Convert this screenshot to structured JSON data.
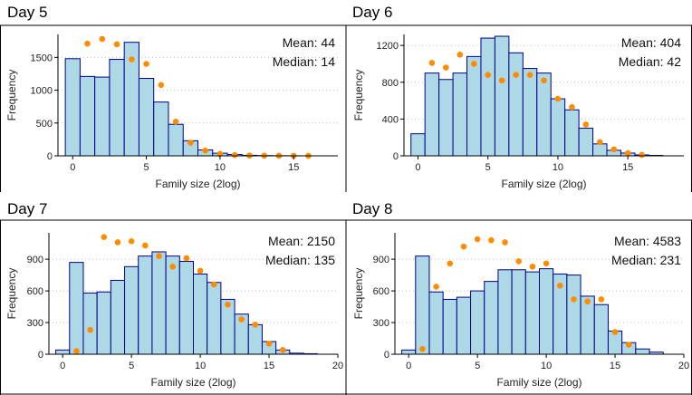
{
  "chart_data": [
    {
      "type": "bar",
      "panel_title": "Day 5",
      "xlabel": "Family size (2log)",
      "ylabel": "Frequency",
      "xlim": [
        -1,
        18
      ],
      "ylim": [
        0,
        1850
      ],
      "x_ticks": [
        0,
        5,
        10,
        15
      ],
      "y_ticks": [
        0,
        500,
        1000,
        1500
      ],
      "grid": "horizontal dotted",
      "bins": {
        "x": [
          0,
          1,
          2,
          3,
          4,
          5,
          6,
          7,
          8,
          9,
          10,
          11,
          12,
          13,
          14,
          15
        ],
        "values": [
          1480,
          1210,
          1200,
          1470,
          1730,
          1180,
          820,
          480,
          230,
          90,
          40,
          20,
          8,
          4,
          2,
          1
        ]
      },
      "points": {
        "x": [
          1,
          2,
          3,
          4,
          5,
          6,
          7,
          8,
          9,
          10,
          11,
          12,
          13,
          14,
          15,
          16
        ],
        "values": [
          1710,
          1780,
          1700,
          1470,
          1400,
          1080,
          520,
          200,
          80,
          30,
          12,
          5,
          3,
          2,
          1,
          1
        ]
      },
      "annotations": [
        "Mean: 44",
        "Median: 14"
      ],
      "bar_color": "#add8e6",
      "bar_edge": "#00008b",
      "point_color": "#ff8c00"
    },
    {
      "type": "bar",
      "panel_title": "Day 6",
      "xlabel": "Family size (2log)",
      "ylabel": "Frequency",
      "xlim": [
        -1,
        19
      ],
      "ylim": [
        0,
        1320
      ],
      "x_ticks": [
        0,
        5,
        10,
        15
      ],
      "y_ticks": [
        0,
        400,
        800,
        1200
      ],
      "grid": "horizontal dotted",
      "bins": {
        "x": [
          0,
          1,
          2,
          3,
          4,
          5,
          6,
          7,
          8,
          9,
          10,
          11,
          12,
          13,
          14,
          15,
          16,
          17
        ],
        "values": [
          240,
          900,
          830,
          900,
          1080,
          1280,
          1300,
          1120,
          950,
          900,
          620,
          500,
          300,
          130,
          60,
          30,
          10,
          5
        ]
      },
      "points": {
        "x": [
          1,
          2,
          3,
          4,
          5,
          6,
          7,
          8,
          9,
          10,
          11,
          12,
          13,
          14,
          15,
          16
        ],
        "values": [
          1010,
          960,
          1100,
          1000,
          880,
          820,
          880,
          880,
          820,
          620,
          530,
          340,
          150,
          70,
          30,
          10
        ]
      },
      "annotations": [
        "Mean: 404",
        "Median: 42"
      ],
      "bar_color": "#add8e6",
      "bar_edge": "#00008b",
      "point_color": "#ff8c00"
    },
    {
      "type": "bar",
      "panel_title": "Day 7",
      "xlabel": "Family size (2log)",
      "ylabel": "Frequency",
      "xlim": [
        -1,
        20
      ],
      "ylim": [
        0,
        1150
      ],
      "x_ticks": [
        0,
        5,
        10,
        15,
        20
      ],
      "y_ticks": [
        0,
        300,
        600,
        900
      ],
      "grid": "horizontal dotted",
      "bins": {
        "x": [
          0,
          1,
          2,
          3,
          4,
          5,
          6,
          7,
          8,
          9,
          10,
          11,
          12,
          13,
          14,
          15,
          16,
          17,
          18
        ],
        "values": [
          40,
          870,
          580,
          590,
          700,
          830,
          930,
          970,
          930,
          880,
          760,
          680,
          520,
          380,
          280,
          120,
          40,
          10,
          5
        ]
      },
      "points": {
        "x": [
          1,
          2,
          3,
          4,
          5,
          6,
          7,
          8,
          9,
          10,
          11,
          12,
          13,
          14,
          15,
          16
        ],
        "values": [
          30,
          230,
          1110,
          1060,
          1070,
          1030,
          930,
          830,
          910,
          790,
          660,
          470,
          330,
          280,
          100,
          40
        ]
      },
      "annotations": [
        "Mean: 2150",
        "Median: 135"
      ],
      "bar_color": "#add8e6",
      "bar_edge": "#00008b",
      "point_color": "#ff8c00"
    },
    {
      "type": "bar",
      "panel_title": "Day 8",
      "xlabel": "Family size (2log)",
      "ylabel": "Frequency",
      "xlim": [
        -1,
        20
      ],
      "ylim": [
        0,
        1150
      ],
      "x_ticks": [
        0,
        5,
        10,
        15,
        20
      ],
      "y_ticks": [
        0,
        300,
        600,
        900
      ],
      "grid": "horizontal dotted",
      "bins": {
        "x": [
          0,
          1,
          2,
          3,
          4,
          5,
          6,
          7,
          8,
          9,
          10,
          11,
          12,
          13,
          14,
          15,
          16,
          17,
          18
        ],
        "values": [
          40,
          930,
          590,
          520,
          540,
          600,
          690,
          800,
          800,
          780,
          810,
          760,
          750,
          550,
          470,
          220,
          110,
          50,
          20
        ]
      },
      "points": {
        "x": [
          1,
          2,
          3,
          4,
          5,
          6,
          7,
          8,
          9,
          10,
          11,
          12,
          13,
          14,
          15,
          16
        ],
        "values": [
          50,
          640,
          860,
          1020,
          1090,
          1080,
          1060,
          880,
          830,
          860,
          650,
          520,
          500,
          520,
          210,
          90
        ]
      },
      "annotations": [
        "Mean: 4583",
        "Median: 231"
      ],
      "bar_color": "#add8e6",
      "bar_edge": "#00008b",
      "point_color": "#ff8c00"
    }
  ]
}
